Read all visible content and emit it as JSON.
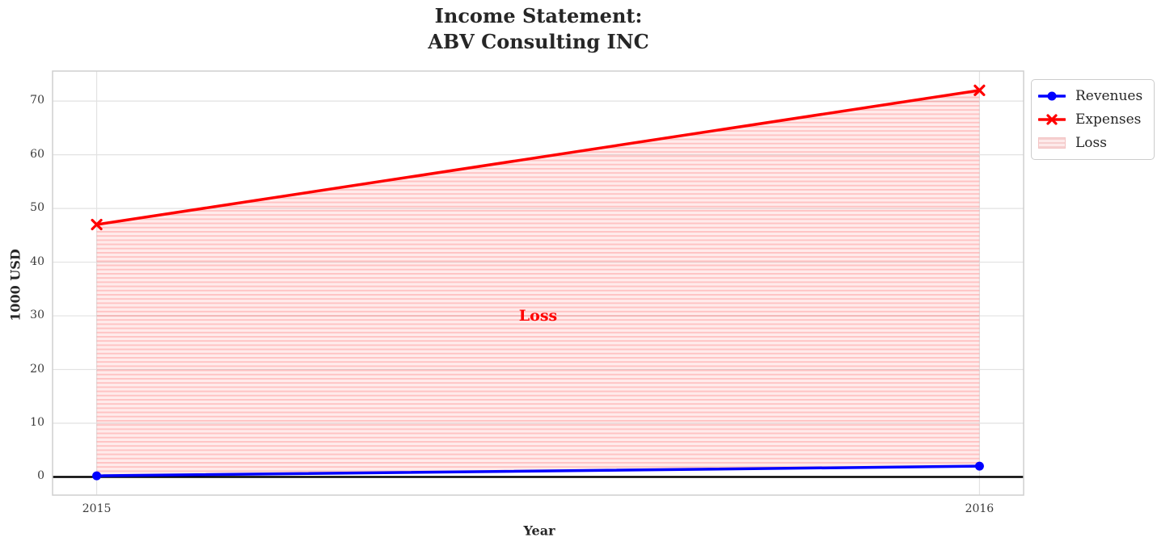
{
  "chart_data": {
    "type": "line",
    "title": "Income Statement:\nABV Consulting INC",
    "title_lines": [
      "Income Statement:",
      "ABV Consulting INC"
    ],
    "xlabel": "Year",
    "ylabel": "1000 USD",
    "x": [
      2015,
      2016
    ],
    "series": [
      {
        "name": "Revenues",
        "values": [
          0.2,
          2
        ],
        "color": "#0000ff",
        "marker": "circle"
      },
      {
        "name": "Expenses",
        "values": [
          47,
          72
        ],
        "color": "#ff0000",
        "marker": "x"
      }
    ],
    "loss_area": {
      "label": "Loss",
      "between": [
        "Revenues",
        "Expenses"
      ],
      "fill_color": "rgba(255,0,0,0.08)",
      "hatch": "horizontal-lines",
      "hatch_color": "rgba(255,0,0,0.17)"
    },
    "annotation": {
      "text": "Loss",
      "x": 2015.5,
      "y": 30,
      "color": "#ff0000"
    },
    "xticks": {
      "values": [
        2015,
        2016
      ],
      "labels": [
        "2015",
        "2016"
      ]
    },
    "yticks": [
      0,
      10,
      20,
      30,
      40,
      50,
      60,
      70
    ],
    "xlim": [
      2014.95,
      2016.05
    ],
    "ylim": [
      -3.39,
      75.59
    ],
    "grid": true,
    "zero_line": {
      "y": 0,
      "color": "#000000"
    },
    "legend": {
      "position": "upper-right-outside",
      "entries": [
        {
          "label": "Revenues",
          "swatch": "line-circle",
          "color": "#0000ff"
        },
        {
          "label": "Expenses",
          "swatch": "line-x",
          "color": "#ff0000"
        },
        {
          "label": "Loss",
          "swatch": "hatch-patch",
          "color": "#fdeaea"
        }
      ]
    },
    "colors": {
      "grid": "#e2e2e2",
      "spine": "#cfcfcf",
      "text": "#262626",
      "annotation": "#ff0000"
    }
  }
}
